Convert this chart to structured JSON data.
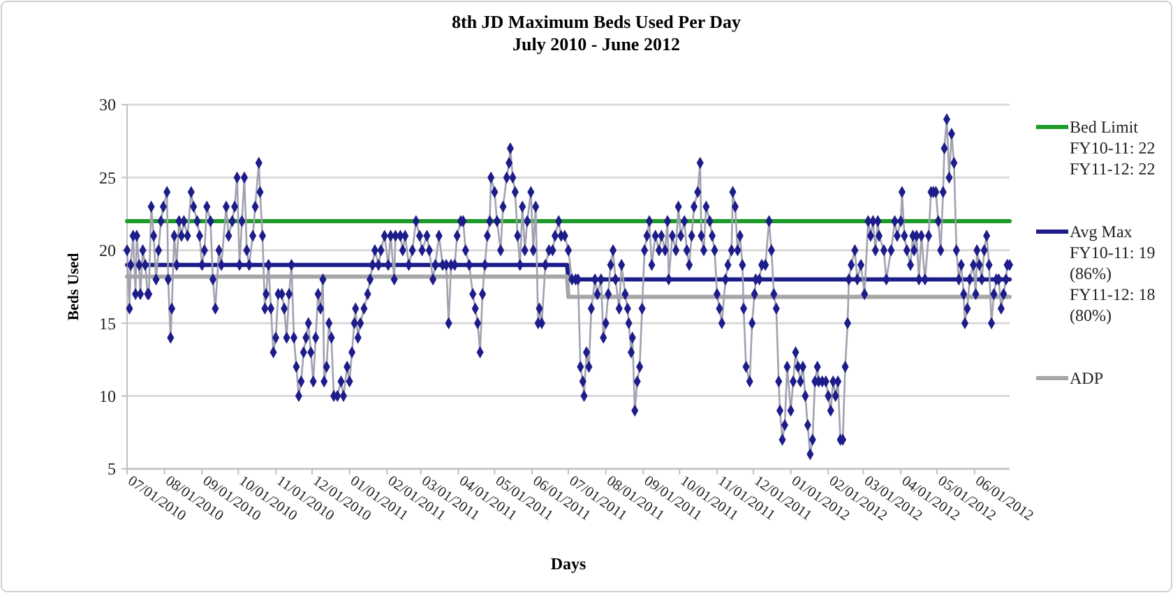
{
  "chart_data": {
    "type": "line",
    "title": "8th JD Maximum  Beds Used Per Day",
    "subtitle": "July 2010 - June 2012",
    "xlabel": "Days",
    "ylabel": "Beds Used",
    "xlim": [
      "2010-07-01",
      "2012-06-30"
    ],
    "ylim": [
      5,
      30
    ],
    "yticks": [
      5,
      10,
      15,
      20,
      25,
      30
    ],
    "xticks": [
      {
        "value": "2010-07-01",
        "label": "07/01/2010"
      },
      {
        "value": "2010-08-01",
        "label": "08/01/2010"
      },
      {
        "value": "2010-09-01",
        "label": "09/01/2010"
      },
      {
        "value": "2010-10-01",
        "label": "10/01/2010"
      },
      {
        "value": "2010-11-01",
        "label": "11/01/2010"
      },
      {
        "value": "2010-12-01",
        "label": "12/01/2010"
      },
      {
        "value": "2011-01-01",
        "label": "01/01/2011"
      },
      {
        "value": "2011-02-01",
        "label": "02/01/2011"
      },
      {
        "value": "2011-03-01",
        "label": "03/01/2011"
      },
      {
        "value": "2011-04-01",
        "label": "04/01/2011"
      },
      {
        "value": "2011-05-01",
        "label": "05/01/2011"
      },
      {
        "value": "2011-06-01",
        "label": "06/01/2011"
      },
      {
        "value": "2011-07-01",
        "label": "07/01/2011"
      },
      {
        "value": "2011-08-01",
        "label": "08/01/2011"
      },
      {
        "value": "2011-09-01",
        "label": "09/01/2011"
      },
      {
        "value": "2011-10-01",
        "label": "10/01/2011"
      },
      {
        "value": "2011-11-01",
        "label": "11/01/2011"
      },
      {
        "value": "2011-12-01",
        "label": "12/01/2011"
      },
      {
        "value": "2012-01-01",
        "label": "01/01/2012"
      },
      {
        "value": "2012-02-01",
        "label": "02/01/2012"
      },
      {
        "value": "2012-03-01",
        "label": "03/01/2012"
      },
      {
        "value": "2012-04-01",
        "label": "04/01/2012"
      },
      {
        "value": "2012-05-01",
        "label": "05/01/2012"
      },
      {
        "value": "2012-06-01",
        "label": "06/01/2012"
      }
    ],
    "grid": "y",
    "legend": "right",
    "marker": "diamond",
    "line_style": "solid",
    "series": [
      {
        "name": "Bed Limit FY10-11: 22   FY11-12: 22",
        "color": "#1f9a2a",
        "marker": "none",
        "x": [
          "2010-07-01",
          "2012-06-30"
        ],
        "values": [
          22,
          22
        ]
      },
      {
        "name": "Avg Max FY10-11: 19 (86%) FY11-12: 18 (80%)",
        "color": "#1c1c8a",
        "marker": "none",
        "x": [
          "2010-07-01",
          "2011-06-30",
          "2011-07-01",
          "2012-06-30"
        ],
        "values": [
          19,
          19,
          18,
          18
        ]
      },
      {
        "name": "ADP",
        "color": "#a6a6a6",
        "marker": "none",
        "x": [
          "2010-07-01",
          "2011-06-30",
          "2011-07-01",
          "2012-06-30"
        ],
        "values": [
          18.2,
          18.2,
          16.8,
          16.8
        ]
      },
      {
        "color": "#1c1c8a",
        "x": [
          "2010-07-01",
          "2010-07-03",
          "2010-07-04",
          "2010-07-06",
          "2010-07-08",
          "2010-07-09",
          "2010-07-11",
          "2010-07-12",
          "2010-07-14",
          "2010-07-16",
          "2010-07-18",
          "2010-07-19",
          "2010-07-21",
          "2010-07-23",
          "2010-07-25",
          "2010-07-27",
          "2010-07-29",
          "2010-07-31",
          "2010-08-03",
          "2010-08-04",
          "2010-08-06",
          "2010-08-07",
          "2010-08-09",
          "2010-08-11",
          "2010-08-13",
          "2010-08-15",
          "2010-08-17",
          "2010-08-20",
          "2010-08-23",
          "2010-08-25",
          "2010-08-28",
          "2010-08-30",
          "2010-09-01",
          "2010-09-03",
          "2010-09-05",
          "2010-09-08",
          "2010-09-10",
          "2010-09-12",
          "2010-09-15",
          "2010-09-17",
          "2010-09-21",
          "2010-09-23",
          "2010-09-26",
          "2010-09-28",
          "2010-09-30",
          "2010-10-02",
          "2010-10-04",
          "2010-10-06",
          "2010-10-08",
          "2010-10-10",
          "2010-10-13",
          "2010-10-15",
          "2010-10-18",
          "2010-10-19",
          "2010-10-21",
          "2010-10-23",
          "2010-10-24",
          "2010-10-26",
          "2010-10-28",
          "2010-10-30",
          "2010-11-01",
          "2010-11-03",
          "2010-11-06",
          "2010-11-08",
          "2010-11-10",
          "2010-11-12",
          "2010-11-14",
          "2010-11-16",
          "2010-11-18",
          "2010-11-20",
          "2010-11-22",
          "2010-11-24",
          "2010-11-26",
          "2010-11-28",
          "2010-11-30",
          "2010-12-02",
          "2010-12-04",
          "2010-12-06",
          "2010-12-08",
          "2010-12-10",
          "2010-12-11",
          "2010-12-13",
          "2010-12-15",
          "2010-12-17",
          "2010-12-19",
          "2010-12-22",
          "2010-12-25",
          "2010-12-27",
          "2010-12-30",
          "2011-01-01",
          "2011-01-03",
          "2011-01-05",
          "2011-01-06",
          "2011-01-08",
          "2011-01-10",
          "2011-01-13",
          "2011-01-16",
          "2011-01-18",
          "2011-01-20",
          "2011-01-22",
          "2011-01-25",
          "2011-01-27",
          "2011-01-30",
          "2011-02-02",
          "2011-02-04",
          "2011-02-07",
          "2011-02-08",
          "2011-02-12",
          "2011-02-14",
          "2011-02-16",
          "2011-02-19",
          "2011-02-22",
          "2011-02-25",
          "2011-02-28",
          "2011-03-02",
          "2011-03-06",
          "2011-03-08",
          "2011-03-11",
          "2011-03-13",
          "2011-03-16",
          "2011-03-19",
          "2011-03-22",
          "2011-03-24",
          "2011-03-26",
          "2011-03-29",
          "2011-03-31",
          "2011-04-03",
          "2011-04-05",
          "2011-04-07",
          "2011-04-10",
          "2011-04-13",
          "2011-04-15",
          "2011-04-17",
          "2011-04-19",
          "2011-04-21",
          "2011-04-23",
          "2011-04-25",
          "2011-04-27",
          "2011-04-28",
          "2011-05-01",
          "2011-05-03",
          "2011-05-06",
          "2011-05-08",
          "2011-05-11",
          "2011-05-13",
          "2011-05-14",
          "2011-05-16",
          "2011-05-18",
          "2011-05-20",
          "2011-05-22",
          "2011-05-24",
          "2011-05-26",
          "2011-05-28",
          "2011-05-31",
          "2011-06-02",
          "2011-06-04",
          "2011-06-06",
          "2011-06-07",
          "2011-06-09",
          "2011-06-12",
          "2011-06-15",
          "2011-06-18",
          "2011-06-20",
          "2011-06-23",
          "2011-06-25",
          "2011-06-28",
          "2011-07-01",
          "2011-07-04",
          "2011-07-07",
          "2011-07-09",
          "2011-07-11",
          "2011-07-13",
          "2011-07-14",
          "2011-07-16",
          "2011-07-18",
          "2011-07-20",
          "2011-07-23",
          "2011-07-25",
          "2011-07-28",
          "2011-07-30",
          "2011-08-01",
          "2011-08-03",
          "2011-08-05",
          "2011-08-07",
          "2011-08-09",
          "2011-08-12",
          "2011-08-14",
          "2011-08-17",
          "2011-08-19",
          "2011-08-20",
          "2011-08-22",
          "2011-08-23",
          "2011-08-25",
          "2011-08-27",
          "2011-08-29",
          "2011-08-31",
          "2011-09-02",
          "2011-09-04",
          "2011-09-06",
          "2011-09-08",
          "2011-09-11",
          "2011-09-14",
          "2011-09-16",
          "2011-09-19",
          "2011-09-21",
          "2011-09-22",
          "2011-09-25",
          "2011-09-28",
          "2011-09-30",
          "2011-10-02",
          "2011-10-05",
          "2011-10-07",
          "2011-10-09",
          "2011-10-11",
          "2011-10-13",
          "2011-10-16",
          "2011-10-18",
          "2011-10-19",
          "2011-10-21",
          "2011-10-23",
          "2011-10-26",
          "2011-10-28",
          "2011-10-30",
          "2011-11-01",
          "2011-11-03",
          "2011-11-05",
          "2011-11-08",
          "2011-11-10",
          "2011-11-13",
          "2011-11-14",
          "2011-11-16",
          "2011-11-18",
          "2011-11-20",
          "2011-11-22",
          "2011-11-23",
          "2011-11-25",
          "2011-11-28",
          "2011-11-30",
          "2011-12-02",
          "2011-12-03",
          "2011-12-06",
          "2011-12-08",
          "2011-12-11",
          "2011-12-14",
          "2011-12-16",
          "2011-12-18",
          "2011-12-20",
          "2011-12-22",
          "2011-12-23",
          "2011-12-25",
          "2011-12-27",
          "2011-12-29",
          "2012-01-01",
          "2012-01-03",
          "2012-01-05",
          "2012-01-07",
          "2012-01-09",
          "2012-01-11",
          "2012-01-13",
          "2012-01-15",
          "2012-01-17",
          "2012-01-19",
          "2012-01-21",
          "2012-01-23",
          "2012-01-24",
          "2012-01-27",
          "2012-01-30",
          "2012-02-01",
          "2012-02-03",
          "2012-02-05",
          "2012-02-07",
          "2012-02-09",
          "2012-02-11",
          "2012-02-13",
          "2012-02-15",
          "2012-02-17",
          "2012-02-18",
          "2012-02-20",
          "2012-02-23",
          "2012-02-25",
          "2012-02-28",
          "2012-03-02",
          "2012-03-05",
          "2012-03-07",
          "2012-03-09",
          "2012-03-11",
          "2012-03-13",
          "2012-03-14",
          "2012-03-18",
          "2012-03-20",
          "2012-03-24",
          "2012-03-27",
          "2012-03-29",
          "2012-04-01",
          "2012-04-02",
          "2012-04-04",
          "2012-04-06",
          "2012-04-09",
          "2012-04-11",
          "2012-04-12",
          "2012-04-14",
          "2012-04-16",
          "2012-04-18",
          "2012-04-21",
          "2012-04-24",
          "2012-04-26",
          "2012-04-28",
          "2012-04-30",
          "2012-05-02",
          "2012-05-04",
          "2012-05-06",
          "2012-05-07",
          "2012-05-09",
          "2012-05-11",
          "2012-05-13",
          "2012-05-15",
          "2012-05-17",
          "2012-05-19",
          "2012-05-21",
          "2012-05-23",
          "2012-05-24",
          "2012-05-26",
          "2012-05-28",
          "2012-05-31",
          "2012-06-02",
          "2012-06-03",
          "2012-06-05",
          "2012-06-07",
          "2012-06-09",
          "2012-06-11",
          "2012-06-13",
          "2012-06-15",
          "2012-06-17",
          "2012-06-19",
          "2012-06-21",
          "2012-06-23",
          "2012-06-25",
          "2012-06-27",
          "2012-06-28",
          "2012-06-30"
        ],
        "values": [
          20,
          16,
          19,
          21,
          17,
          21,
          19,
          17,
          20,
          19,
          17,
          17,
          23,
          21,
          18,
          20,
          22,
          23,
          24,
          18,
          14,
          16,
          21,
          19,
          22,
          21,
          22,
          21,
          24,
          23,
          22,
          21,
          19,
          20,
          23,
          22,
          18,
          16,
          20,
          19,
          23,
          21,
          22,
          23,
          25,
          19,
          22,
          25,
          20,
          19,
          21,
          23,
          26,
          24,
          21,
          16,
          17,
          19,
          16,
          13,
          14,
          17,
          17,
          16,
          14,
          17,
          19,
          14,
          12,
          10,
          11,
          13,
          14,
          15,
          13,
          11,
          14,
          17,
          16,
          18,
          11,
          12,
          15,
          14,
          10,
          10,
          11,
          10,
          12,
          11,
          13,
          15,
          16,
          14,
          15,
          16,
          17,
          18,
          19,
          20,
          19,
          20,
          21,
          19,
          21,
          18,
          21,
          21,
          20,
          21,
          19,
          20,
          22,
          21,
          20,
          21,
          20,
          18,
          19,
          21,
          19,
          19,
          15,
          19,
          19,
          21,
          22,
          22,
          20,
          19,
          17,
          16,
          15,
          13,
          17,
          19,
          21,
          22,
          25,
          24,
          22,
          20,
          23,
          25,
          26,
          27,
          25,
          24,
          21,
          19,
          23,
          20,
          22,
          24,
          20,
          23,
          15,
          16,
          15,
          19,
          20,
          20,
          21,
          22,
          21,
          21,
          20,
          18,
          18,
          18,
          12,
          11,
          10,
          13,
          12,
          16,
          18,
          17,
          18,
          14,
          15,
          17,
          19,
          20,
          18,
          16,
          19,
          17,
          16,
          15,
          13,
          14,
          9,
          11,
          12,
          16,
          20,
          21,
          22,
          19,
          21,
          20,
          21,
          20,
          22,
          18,
          21,
          20,
          23,
          21,
          22,
          20,
          19,
          21,
          23,
          24,
          26,
          21,
          20,
          23,
          22,
          21,
          20,
          17,
          16,
          15,
          18,
          19,
          20,
          24,
          23,
          20,
          21,
          19,
          16,
          12,
          11,
          15,
          17,
          18,
          18,
          19,
          19,
          22,
          20,
          17,
          16,
          11,
          9,
          7,
          8,
          12,
          9,
          11,
          13,
          12,
          11,
          12,
          10,
          8,
          6,
          7,
          11,
          12,
          11,
          11,
          11,
          10,
          9,
          11,
          10,
          11,
          7,
          7,
          12,
          15,
          18,
          19,
          20,
          18,
          19,
          17,
          22,
          21,
          22,
          20,
          22,
          21,
          20,
          18,
          20,
          22,
          21,
          22,
          24,
          21,
          20,
          19,
          21,
          20,
          21,
          18,
          21,
          18,
          21,
          24,
          24,
          24,
          22,
          20,
          24,
          27,
          29,
          25,
          28,
          26,
          20,
          18,
          19,
          17,
          15,
          16,
          18,
          19,
          17,
          20,
          19,
          18,
          20,
          21,
          19,
          15,
          17,
          18,
          18,
          16,
          17,
          18,
          19,
          19
        ]
      }
    ]
  }
}
